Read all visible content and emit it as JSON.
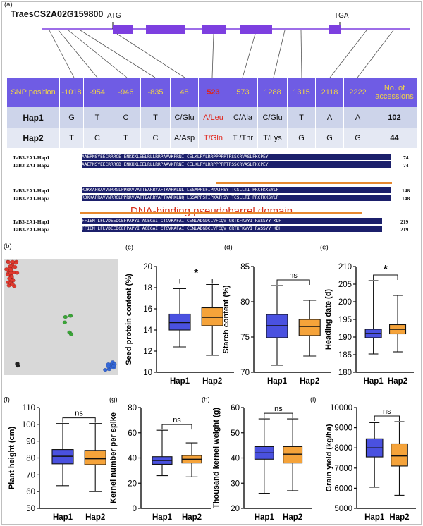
{
  "panel_labels": {
    "a": "(a)",
    "b": "(b)",
    "c": "(c)",
    "d": "(d)",
    "e": "(e)",
    "f": "(f)",
    "g": "(g)",
    "h": "(h)",
    "i": "(i)"
  },
  "gene": {
    "name": "TraesCS2A02G159800",
    "start_codon": "ATG",
    "stop_codon": "TGA"
  },
  "snp_table": {
    "header_label": "SNP position",
    "positions": [
      "-1018",
      "-954",
      "-946",
      "-835",
      "48",
      "523",
      "573",
      "1288",
      "1315",
      "2118",
      "2222"
    ],
    "accessions_header": "No. of accessions",
    "hap1": {
      "label": "Hap1",
      "alleles": [
        "G",
        "T",
        "C",
        "T",
        "C/Glu",
        "A/Leu",
        "C/Ala",
        "C/Glu",
        "T",
        "A",
        "A"
      ],
      "count": "102"
    },
    "hap2": {
      "label": "Hap2",
      "alleles": [
        "T",
        "C",
        "T",
        "C",
        "A/Asp",
        "T/Gln",
        "T /Thr",
        "T/Lys",
        "G",
        "G",
        "G"
      ],
      "count": "44"
    }
  },
  "alignment": {
    "blocks": [
      {
        "hap1_name": "TaB3-2A1-Hap1",
        "hap2_name": "TaB3-2A1-Hap2",
        "hap1_seq": "AAEPNSYEECRRRCE ENKKKLEELRLLRRPAAVKPRNI CELKLRYLRRPPPPPTRSSCRVASLFKCPEY",
        "hap2_seq": "AAEPNSYEECRRRCD ENKKKLEELRLLRRPAAVKPRNI CELKLRYLRRPPPPPTRSSCRVASLFKCPEY",
        "end": "74"
      },
      {
        "hap1_name": "TaB3-2A1-Hap1",
        "hap2_name": "TaB3-2A1-Hap2",
        "hap1_seq": "RDKKAPRAVVNRRGLPPRRVVATTEARRYAFTKARKLNL LSSAPPSFIPKATHSY TCSLLTI PRCFKKSYLP",
        "hap2_seq": "RDKKAPRAVVNRRGLPPRRVVATTEARRYAFTKARKLNQ LSSAPPSFIPKATHSY TCSLLTI PRCFKKSYLP",
        "end": "148"
      },
      {
        "hap1_name": "TaB3-2A1-Hap1",
        "hap2_name": "TaB3-2A1-Hap2",
        "hap1_seq": "FFIEM LFLVDEEDCEFPAPYI ACEGAI CTCVKAFAI CENLADGDCLVFCQV GRTKFKVYI RASSYY KDH",
        "hap2_seq": "FFIEM LFLVDEEDCEFPAPYI ACEGAI CTCVKAFAI CENLADGDCLVFCQV GRTKFKVYI RASSYY KDH",
        "end": "219"
      }
    ],
    "domain_label": "DNA-binding pseudobarrel domain"
  },
  "colors": {
    "hap1": "#4a51e0",
    "hap2": "#f5a33a",
    "header_bg": "#6f5ce4",
    "header_text": "#f2d447",
    "exon": "#7d3fe0",
    "red": "#e0241a"
  },
  "pca": {
    "type": "scatter",
    "clusters": [
      {
        "color": "#e0392e",
        "n": 40,
        "cx": 0.07,
        "cy": 0.88,
        "sx": 0.025,
        "sy": 0.06
      },
      {
        "color": "#3aa537",
        "n": 5,
        "cx": 0.58,
        "cy": 0.44,
        "sx": 0.03,
        "sy": 0.04
      },
      {
        "color": "#3568d8",
        "n": 12,
        "cx": 0.95,
        "cy": 0.08,
        "sx": 0.03,
        "sy": 0.02
      },
      {
        "color": "#222222",
        "n": 3,
        "cx": 0.12,
        "cy": 0.1,
        "sx": 0.005,
        "sy": 0.01
      }
    ]
  },
  "chart_data": [
    {
      "id": "c",
      "type": "box",
      "categories": [
        "Hap1",
        "Hap2"
      ],
      "ylabel": "Seed protein content (%)",
      "ylim": [
        10,
        20
      ],
      "ticks": [
        10,
        12,
        14,
        16,
        18,
        20
      ],
      "significance": "*",
      "series": [
        {
          "name": "Hap1",
          "min": 12.4,
          "q1": 14.0,
          "median": 14.7,
          "q3": 15.5,
          "max": 17.9
        },
        {
          "name": "Hap2",
          "min": 11.6,
          "q1": 14.4,
          "median": 15.2,
          "q3": 16.1,
          "max": 18.3
        }
      ]
    },
    {
      "id": "d",
      "type": "box",
      "categories": [
        "Hap1",
        "Hap2"
      ],
      "ylabel": "Starch content (%)",
      "ylim": [
        70,
        85
      ],
      "ticks": [
        70,
        75,
        80,
        85
      ],
      "significance": "ns",
      "series": [
        {
          "name": "Hap1",
          "min": 71.0,
          "q1": 74.9,
          "median": 76.6,
          "q3": 78.2,
          "max": 82.3
        },
        {
          "name": "Hap2",
          "min": 72.3,
          "q1": 75.2,
          "median": 76.5,
          "q3": 77.5,
          "max": 80.2
        }
      ]
    },
    {
      "id": "e",
      "type": "box",
      "categories": [
        "Hap1",
        "Hap2"
      ],
      "ylabel": "Heading date (d)",
      "ylim": [
        180,
        210
      ],
      "ticks": [
        180,
        185,
        190,
        195,
        200,
        205,
        210
      ],
      "significance": "*",
      "series": [
        {
          "name": "Hap1",
          "min": 185.2,
          "q1": 189.8,
          "median": 191.0,
          "q3": 192.2,
          "max": 206.0
        },
        {
          "name": "Hap2",
          "min": 185.8,
          "q1": 190.9,
          "median": 192.2,
          "q3": 193.5,
          "max": 201.8
        }
      ]
    },
    {
      "id": "f",
      "type": "box",
      "categories": [
        "Hap1",
        "Hap2"
      ],
      "ylabel": "Plant height (cm)",
      "ylim": [
        50,
        110
      ],
      "ticks": [
        50,
        60,
        70,
        80,
        90,
        100,
        110
      ],
      "significance": "ns",
      "series": [
        {
          "name": "Hap1",
          "min": 63.5,
          "q1": 76.5,
          "median": 81.0,
          "q3": 85.0,
          "max": 100.5
        },
        {
          "name": "Hap2",
          "min": 60.0,
          "q1": 76.0,
          "median": 79.5,
          "q3": 84.5,
          "max": 100.5
        }
      ]
    },
    {
      "id": "g",
      "type": "box",
      "categories": [
        "Hap1",
        "Hap2"
      ],
      "ylabel": "Kernel number per spike",
      "ylim": [
        0,
        80
      ],
      "ticks": [
        0,
        20,
        40,
        60,
        80
      ],
      "significance": "ns",
      "series": [
        {
          "name": "Hap1",
          "min": 26,
          "q1": 35,
          "median": 38,
          "q3": 41,
          "max": 62
        },
        {
          "name": "Hap2",
          "min": 25,
          "q1": 36,
          "median": 39,
          "q3": 42,
          "max": 52
        }
      ]
    },
    {
      "id": "h",
      "type": "box",
      "categories": [
        "Hap1",
        "Hap2"
      ],
      "ylabel": "Thousand kernel weight (g)",
      "ylim": [
        20,
        60
      ],
      "ticks": [
        20,
        30,
        40,
        50,
        60
      ],
      "significance": "ns",
      "series": [
        {
          "name": "Hap1",
          "min": 26.0,
          "q1": 39.5,
          "median": 42.0,
          "q3": 44.5,
          "max": 55.5
        },
        {
          "name": "Hap2",
          "min": 27.0,
          "q1": 38.0,
          "median": 41.5,
          "q3": 44.5,
          "max": 55.5
        }
      ]
    },
    {
      "id": "i",
      "type": "box",
      "categories": [
        "Hap1",
        "Hap2"
      ],
      "ylabel": "Grain yield (kg/ha)",
      "ylim": [
        5000,
        10000
      ],
      "ticks": [
        5000,
        6000,
        7000,
        8000,
        9000,
        10000
      ],
      "significance": "ns",
      "series": [
        {
          "name": "Hap1",
          "min": 6050,
          "q1": 7550,
          "median": 8000,
          "q3": 8450,
          "max": 9250
        },
        {
          "name": "Hap2",
          "min": 5650,
          "q1": 7100,
          "median": 7600,
          "q3": 8200,
          "max": 9300
        }
      ]
    }
  ]
}
